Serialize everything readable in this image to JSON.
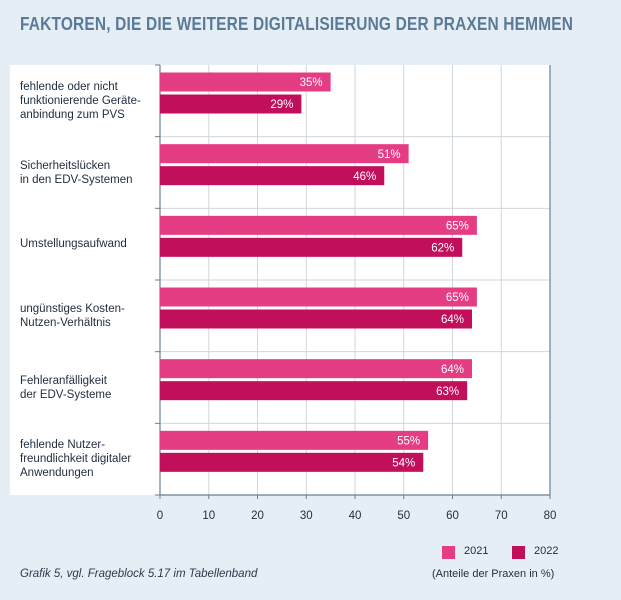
{
  "title": "FAKTOREN, DIE DIE WEITERE DIGITALISIERUNG DER PRAXEN HEMMEN",
  "footnote": "Grafik 5, vgl. Frageblock 5.17 im Tabellenband",
  "units_label": "(Anteile der Praxen in %)",
  "colors": {
    "2021": "#e53d83",
    "2022": "#c20f5c",
    "grid": "#d0d7de",
    "axis": "#6b7f92"
  },
  "chart_data": {
    "type": "bar",
    "orientation": "horizontal",
    "categories": [
      "fehlende oder nicht funktionierende Geräte-anbindung zum PVS",
      "Sicherheitslücken in den EDV-Systemen",
      "Umstellungsaufwand",
      "ungünstiges Kosten-Nutzen-Verhältnis",
      "Fehleranfälligkeit der EDV-Systeme",
      "fehlende Nutzer-freundlichkeit digitaler Anwendungen"
    ],
    "category_lines": [
      [
        "fehlende oder nicht",
        "funktionierende Geräte-",
        "anbindung zum PVS"
      ],
      [
        "Sicherheitslücken",
        "in den EDV-Systemen"
      ],
      [
        "Umstellungsaufwand"
      ],
      [
        "ungünstiges Kosten-",
        "Nutzen-Verhältnis"
      ],
      [
        "Fehleranfälligkeit",
        "der EDV-Systeme"
      ],
      [
        "fehlende Nutzer-",
        "freundlichkeit digitaler",
        "Anwendungen"
      ]
    ],
    "series": [
      {
        "name": "2021",
        "values": [
          35,
          51,
          65,
          65,
          64,
          55
        ]
      },
      {
        "name": "2022",
        "values": [
          29,
          46,
          62,
          64,
          63,
          54
        ]
      }
    ],
    "value_suffix": "%",
    "xlim": [
      0,
      80
    ],
    "xticks": [
      0,
      10,
      20,
      30,
      40,
      50,
      60,
      70,
      80
    ],
    "grid": true,
    "legend": "bottom-right"
  }
}
